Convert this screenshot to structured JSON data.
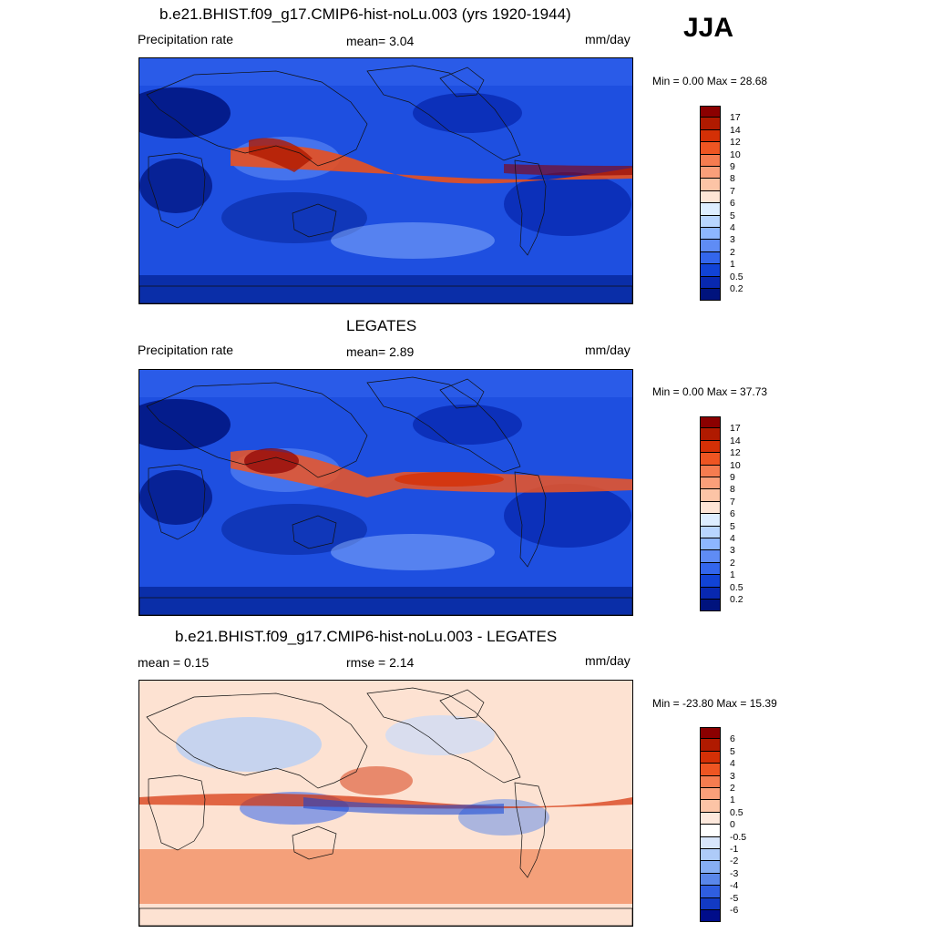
{
  "season": "JJA",
  "panels": [
    {
      "title": "b.e21.BHIST.f09_g17.CMIP6-hist-noLu.003 (yrs 1920-1944)",
      "left_label": "Precipitation rate",
      "center_label": "mean=   3.04",
      "units": "mm/day",
      "minmax": "Min =   0.00 Max =  28.68",
      "colorbar": {
        "labels": [
          "17",
          "14",
          "12",
          "10",
          "9",
          "8",
          "7",
          "6",
          "5",
          "4",
          "3",
          "2",
          "1",
          "0.5",
          "0.2"
        ],
        "colors": [
          "#8b0000",
          "#b01a00",
          "#d43006",
          "#ee5522",
          "#f57c50",
          "#fa9f7a",
          "#fcc4a6",
          "#fde5d5",
          "#ddeeff",
          "#b8d6ff",
          "#8db6ff",
          "#5f8cf5",
          "#3366ec",
          "#1143d6",
          "#0828b0",
          "#00137d"
        ]
      },
      "field": "model"
    },
    {
      "title": "LEGATES",
      "left_label": "Precipitation rate",
      "center_label": "mean=   2.89",
      "units": "mm/day",
      "minmax": "Min =   0.00 Max =  37.73",
      "colorbar": {
        "labels": [
          "17",
          "14",
          "12",
          "10",
          "9",
          "8",
          "7",
          "6",
          "5",
          "4",
          "3",
          "2",
          "1",
          "0.5",
          "0.2"
        ],
        "colors": [
          "#8b0000",
          "#b01a00",
          "#d43006",
          "#ee5522",
          "#f57c50",
          "#fa9f7a",
          "#fcc4a6",
          "#fde5d5",
          "#ddeeff",
          "#b8d6ff",
          "#8db6ff",
          "#5f8cf5",
          "#3366ec",
          "#1143d6",
          "#0828b0",
          "#00137d"
        ]
      },
      "field": "obs"
    },
    {
      "title": "b.e21.BHIST.f09_g17.CMIP6-hist-noLu.003 - LEGATES",
      "left_label": "mean =   0.15",
      "center_label": "rmse =   2.14",
      "units": "mm/day",
      "minmax": "Min = -23.80 Max =  15.39",
      "colorbar": {
        "labels": [
          "6",
          "5",
          "4",
          "3",
          "2",
          "1",
          "0.5",
          "0",
          "-0.5",
          "-1",
          "-2",
          "-3",
          "-4",
          "-5",
          "-6"
        ],
        "colors": [
          "#8b0000",
          "#b01a00",
          "#d43006",
          "#ee5522",
          "#f57c50",
          "#fa9f7a",
          "#fcc4a6",
          "#fde8dc",
          "#ffffff",
          "#d8e6fb",
          "#aecbf8",
          "#86aef3",
          "#5a87ea",
          "#2f5ee0",
          "#123ac4",
          "#000d8a"
        ]
      },
      "field": "diff"
    }
  ]
}
